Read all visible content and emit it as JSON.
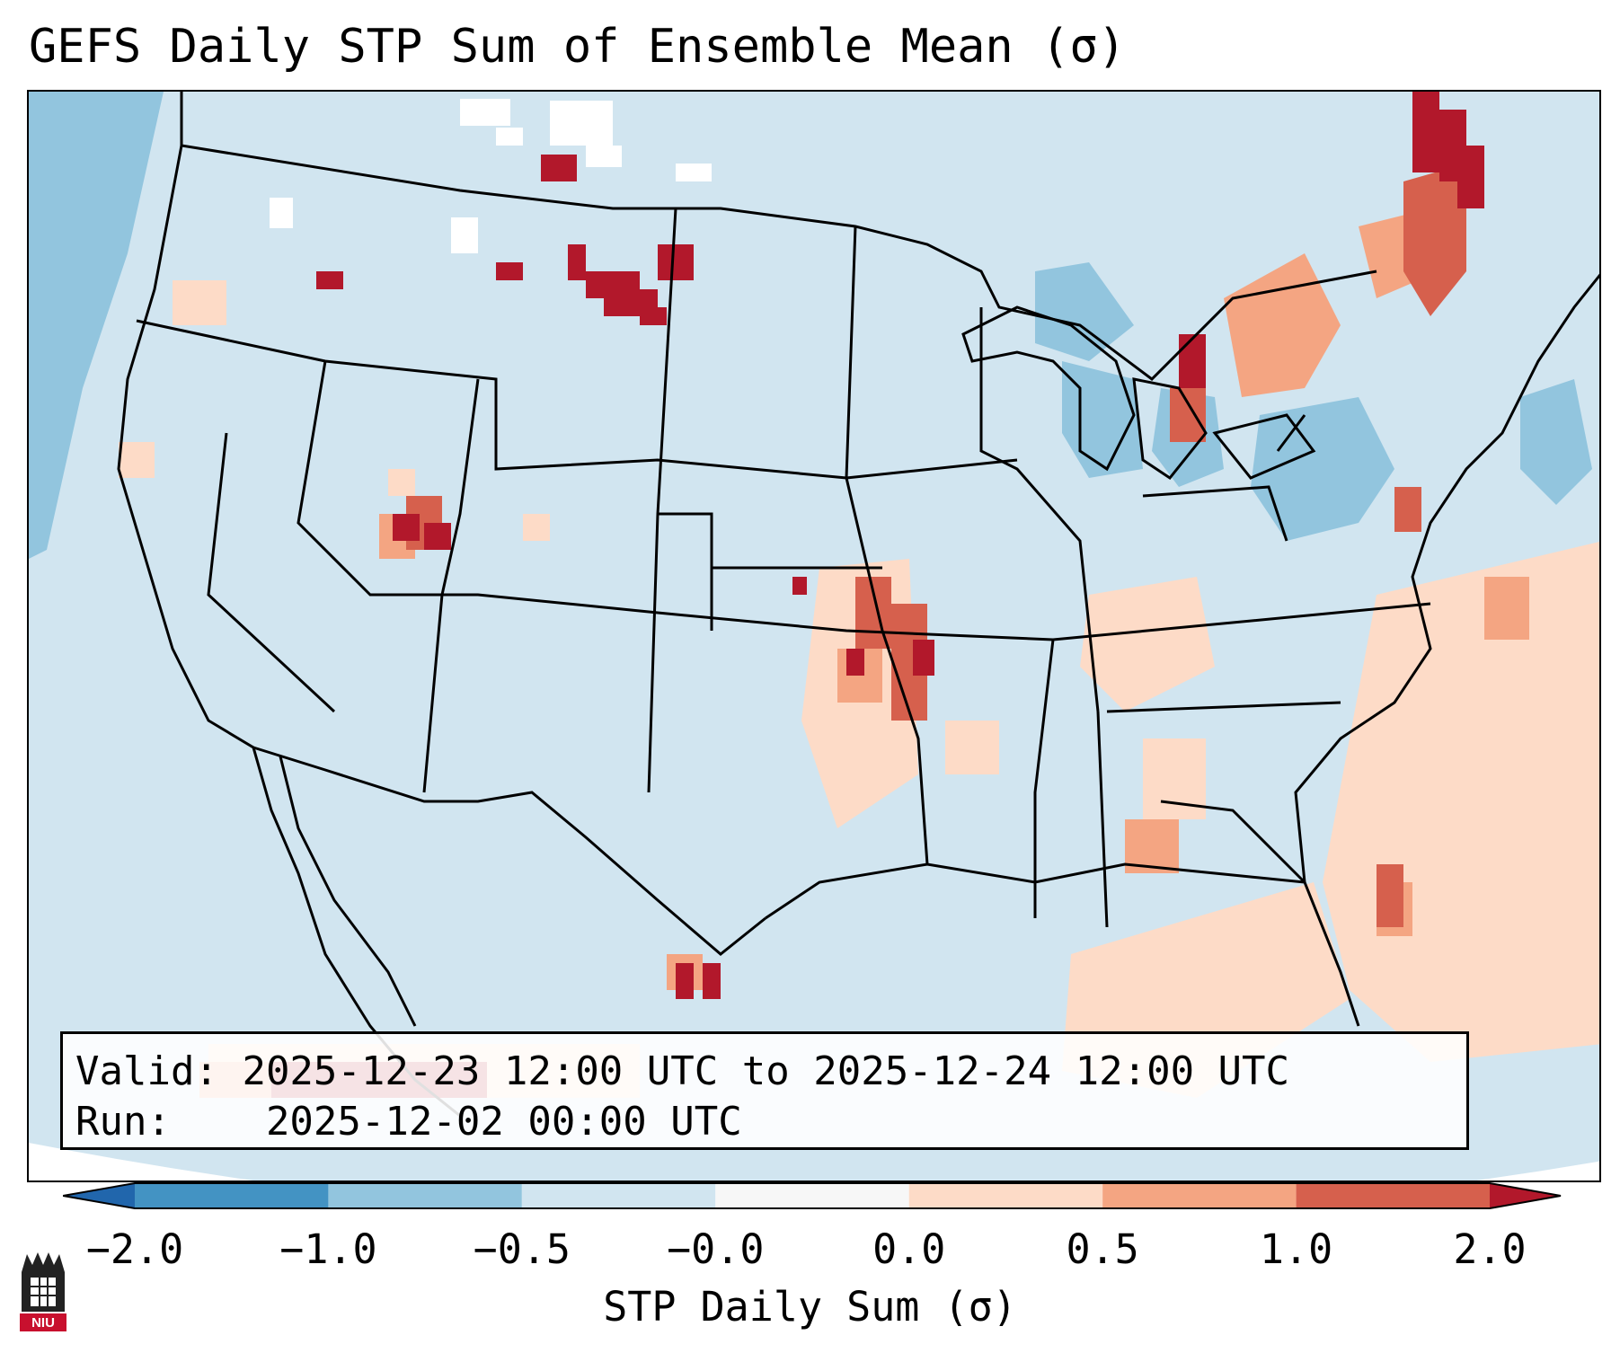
{
  "title": "GEFS Daily STP Sum of Ensemble Mean (σ)",
  "info": {
    "valid_label": "Valid:",
    "valid_value": "2025-12-23 12:00 UTC to 2025-12-24 12:00 UTC",
    "run_label": "Run:",
    "run_value": "2025-12-02 00:00 UTC"
  },
  "colorbar": {
    "label": "STP Daily Sum (σ)",
    "ticks": [
      "−2.0",
      "−1.0",
      "−0.5",
      "−0.0",
      "0.0",
      "0.5",
      "1.0",
      "2.0"
    ],
    "bins": [
      {
        "range": "< -2.0",
        "color": "#2166ac"
      },
      {
        "range": "-2.0 to -1.0",
        "color": "#4393c3"
      },
      {
        "range": "-1.0 to -0.5",
        "color": "#92c5de"
      },
      {
        "range": "-0.5 to -0.0",
        "color": "#d1e5f0"
      },
      {
        "range": "-0.0 to 0.0",
        "color": "#f7f7f7"
      },
      {
        "range": "0.0 to 0.5",
        "color": "#fddbc7"
      },
      {
        "range": "0.5 to 1.0",
        "color": "#f4a582"
      },
      {
        "range": "1.0 to 2.0",
        "color": "#d6604d"
      },
      {
        "range": "> 2.0",
        "color": "#b2182b"
      }
    ]
  },
  "colors": {
    "background_field": "#d1e5f0",
    "neg_moderate": "#92c5de",
    "positive_low": "#fddbc7",
    "positive_mid": "#f4a582",
    "positive_high": "#d6604d",
    "positive_extreme": "#b2182b",
    "neutral": "#ffffff"
  },
  "logo": {
    "text": "NIU",
    "icon": "niu-logo-icon"
  }
}
